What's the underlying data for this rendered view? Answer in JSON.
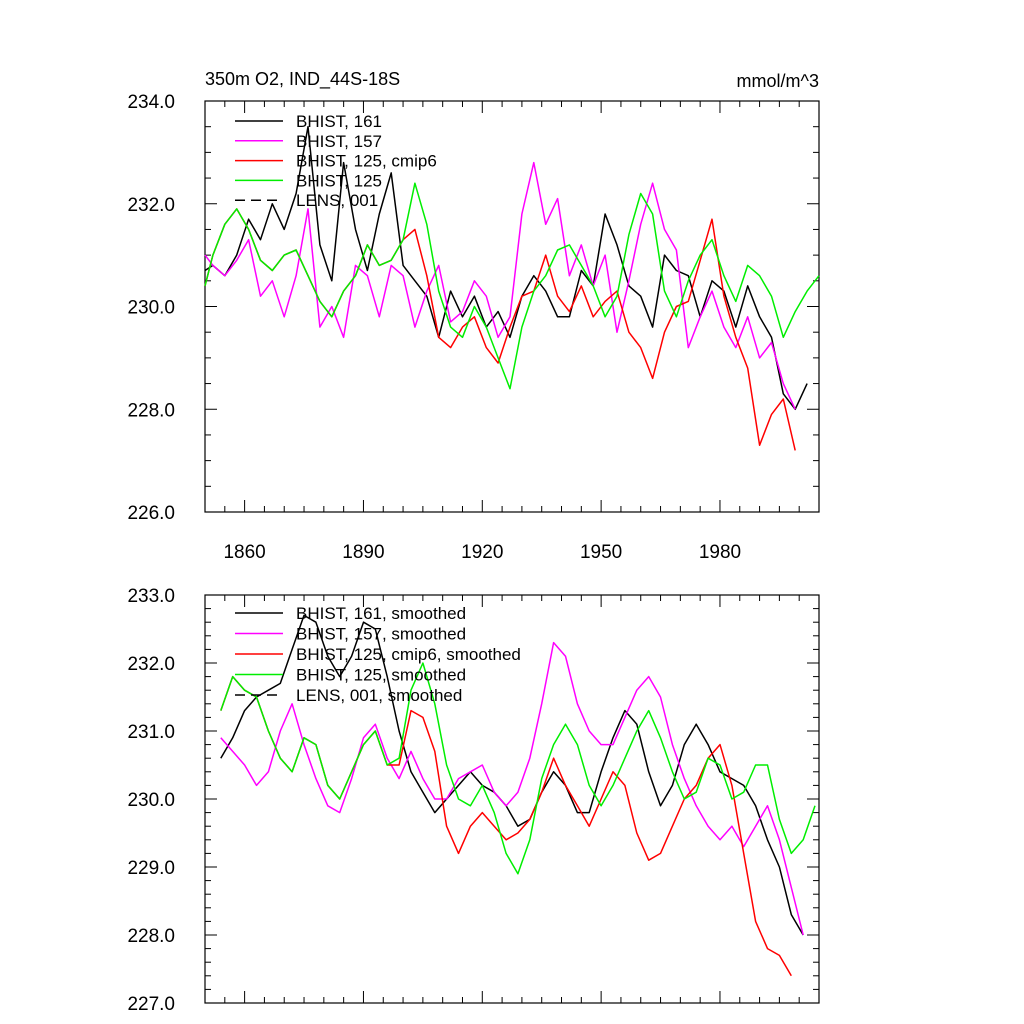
{
  "chart_data": [
    {
      "type": "line",
      "title_left": "350m O2, IND_44S-18S",
      "title_right": "mmol/m^3",
      "xlim": [
        1850,
        2005
      ],
      "ylim": [
        226,
        234
      ],
      "x_ticks": [
        1860,
        1890,
        1920,
        1950,
        1980
      ],
      "x_tick_labels": [
        "1860",
        "1890",
        "1920",
        "1950",
        "1980"
      ],
      "y_ticks": [
        226,
        228,
        230,
        232,
        234
      ],
      "y_tick_labels": [
        "226.0",
        "228.0",
        "230.0",
        "232.0",
        "234.0"
      ],
      "legend_position": "top-left",
      "series": [
        {
          "name": "BHIST, 161",
          "color": "#000000",
          "dash": "solid",
          "x": [
            1850,
            1852,
            1855,
            1858,
            1861,
            1864,
            1867,
            1870,
            1873,
            1876,
            1879,
            1882,
            1885,
            1888,
            1891,
            1894,
            1897,
            1900,
            1903,
            1906,
            1909,
            1912,
            1915,
            1918,
            1921,
            1924,
            1927,
            1930,
            1933,
            1936,
            1939,
            1942,
            1945,
            1948,
            1951,
            1954,
            1957,
            1960,
            1963,
            1966,
            1969,
            1972,
            1975,
            1978,
            1981,
            1984,
            1987,
            1990,
            1993,
            1996,
            1999,
            2002
          ],
          "values": [
            230.7,
            230.8,
            230.6,
            231.0,
            231.7,
            231.3,
            232.0,
            231.5,
            232.2,
            233.5,
            231.2,
            230.5,
            232.8,
            231.5,
            230.7,
            231.8,
            232.6,
            230.8,
            230.5,
            230.2,
            229.4,
            230.3,
            229.8,
            230.2,
            229.6,
            229.9,
            229.4,
            230.2,
            230.6,
            230.3,
            229.8,
            229.8,
            230.7,
            230.4,
            231.8,
            231.2,
            230.4,
            230.2,
            229.6,
            231.0,
            230.7,
            230.6,
            229.8,
            230.5,
            230.3,
            229.6,
            230.4,
            229.8,
            229.4,
            228.3,
            228.0,
            228.5
          ]
        },
        {
          "name": "BHIST, 157",
          "color": "#ff00ff",
          "dash": "solid",
          "x": [
            1850,
            1852,
            1855,
            1858,
            1861,
            1864,
            1867,
            1870,
            1873,
            1876,
            1879,
            1882,
            1885,
            1888,
            1891,
            1894,
            1897,
            1900,
            1903,
            1906,
            1909,
            1912,
            1915,
            1918,
            1921,
            1924,
            1927,
            1930,
            1933,
            1936,
            1939,
            1942,
            1945,
            1948,
            1951,
            1954,
            1957,
            1960,
            1963,
            1966,
            1969,
            1972,
            1975,
            1978,
            1981,
            1984,
            1987,
            1990,
            1993,
            1996,
            1999
          ],
          "values": [
            231.0,
            230.8,
            230.6,
            230.9,
            231.3,
            230.2,
            230.5,
            229.8,
            230.6,
            231.9,
            229.6,
            230.0,
            229.4,
            230.8,
            230.6,
            229.8,
            230.8,
            230.6,
            229.6,
            230.3,
            230.8,
            229.7,
            229.9,
            230.5,
            230.2,
            229.4,
            229.8,
            231.8,
            232.8,
            231.6,
            232.1,
            230.6,
            231.2,
            230.4,
            231.0,
            229.5,
            230.5,
            231.6,
            232.4,
            231.5,
            231.1,
            229.2,
            229.8,
            230.3,
            229.6,
            229.2,
            229.8,
            229.0,
            229.3,
            228.5,
            228.0
          ]
        },
        {
          "name": "BHIST, 125, cmip6",
          "color": "#ff0000",
          "dash": "solid",
          "x": [
            1850,
            1852,
            1855,
            1858,
            1861,
            1864,
            1867,
            1870,
            1873,
            1876,
            1879,
            1882,
            1885,
            1888,
            1891,
            1894,
            1897,
            1900,
            1903,
            1906,
            1909,
            1912,
            1915,
            1918,
            1921,
            1924,
            1927,
            1930,
            1933,
            1936,
            1939,
            1942,
            1945,
            1948,
            1951,
            1954,
            1957,
            1960,
            1963,
            1966,
            1969,
            1972,
            1975,
            1978,
            1981,
            1984,
            1987,
            1990,
            1993,
            1996,
            1999
          ],
          "values": [
            230.4,
            231.0,
            231.6,
            231.9,
            231.5,
            230.9,
            230.7,
            231.0,
            231.1,
            230.6,
            230.1,
            229.8,
            230.3,
            230.6,
            231.2,
            230.8,
            230.9,
            231.3,
            231.5,
            230.6,
            229.4,
            229.2,
            229.6,
            229.8,
            229.2,
            228.9,
            229.6,
            230.2,
            230.3,
            231.0,
            230.2,
            229.9,
            230.4,
            229.8,
            230.1,
            230.3,
            229.5,
            229.2,
            228.6,
            229.5,
            230.0,
            230.1,
            230.9,
            231.7,
            230.2,
            229.4,
            228.8,
            227.3,
            227.9,
            228.2,
            227.2
          ]
        },
        {
          "name": "BHIST, 125",
          "color": "#00ee00",
          "dash": "solid",
          "x": [
            1850,
            1852,
            1855,
            1858,
            1861,
            1864,
            1867,
            1870,
            1873,
            1876,
            1879,
            1882,
            1885,
            1888,
            1891,
            1894,
            1897,
            1900,
            1903,
            1906,
            1909,
            1912,
            1915,
            1918,
            1921,
            1924,
            1927,
            1930,
            1933,
            1936,
            1939,
            1942,
            1945,
            1948,
            1951,
            1954,
            1957,
            1960,
            1963,
            1966,
            1969,
            1972,
            1975,
            1978,
            1981,
            1984,
            1987,
            1990,
            1993,
            1996,
            1999,
            2002,
            2005
          ],
          "values": [
            230.4,
            231.0,
            231.6,
            231.9,
            231.5,
            230.9,
            230.7,
            231.0,
            231.1,
            230.6,
            230.1,
            229.8,
            230.3,
            230.6,
            231.2,
            230.8,
            230.9,
            231.3,
            232.4,
            231.6,
            230.3,
            229.6,
            229.4,
            230.0,
            229.6,
            229.0,
            228.4,
            229.6,
            230.3,
            230.6,
            231.1,
            231.2,
            230.8,
            230.4,
            229.8,
            230.2,
            231.4,
            232.2,
            231.8,
            230.3,
            229.8,
            230.5,
            231.0,
            231.3,
            230.6,
            230.1,
            230.8,
            230.6,
            230.2,
            229.4,
            229.9,
            230.3,
            230.6
          ]
        },
        {
          "name": "LENS, 001",
          "color": "#000000",
          "dash": "dashed",
          "x": [],
          "values": []
        }
      ]
    },
    {
      "type": "line",
      "xlim": [
        1850,
        2005
      ],
      "ylim": [
        227,
        233
      ],
      "x_ticks": [
        1860,
        1890,
        1920,
        1950,
        1980
      ],
      "y_ticks": [
        227,
        228,
        229,
        230,
        231,
        232,
        233
      ],
      "y_tick_labels": [
        "227.0",
        "228.0",
        "229.0",
        "230.0",
        "231.0",
        "232.0",
        "233.0"
      ],
      "legend_position": "top-left",
      "series": [
        {
          "name": "BHIST, 161, smoothed",
          "color": "#000000",
          "dash": "solid",
          "x": [
            1854,
            1857,
            1860,
            1863,
            1866,
            1869,
            1872,
            1875,
            1878,
            1881,
            1884,
            1887,
            1890,
            1893,
            1896,
            1899,
            1902,
            1905,
            1908,
            1911,
            1914,
            1917,
            1920,
            1923,
            1926,
            1929,
            1932,
            1935,
            1938,
            1941,
            1944,
            1947,
            1950,
            1953,
            1956,
            1959,
            1962,
            1965,
            1968,
            1971,
            1974,
            1977,
            1980,
            1983,
            1986,
            1989,
            1992,
            1995,
            1998,
            2001
          ],
          "values": [
            230.6,
            230.9,
            231.3,
            231.5,
            231.6,
            231.7,
            232.2,
            232.7,
            232.6,
            232.1,
            231.8,
            232.1,
            232.6,
            232.5,
            231.8,
            231.0,
            230.4,
            230.1,
            229.8,
            230.0,
            230.2,
            230.4,
            230.2,
            230.1,
            229.9,
            229.6,
            229.7,
            230.1,
            230.4,
            230.2,
            229.8,
            229.8,
            230.4,
            230.9,
            231.3,
            231.1,
            230.4,
            229.9,
            230.2,
            230.8,
            231.1,
            230.8,
            230.4,
            230.3,
            230.2,
            229.9,
            229.4,
            229.0,
            228.3,
            228.0
          ]
        },
        {
          "name": "BHIST, 157, smoothed",
          "color": "#ff00ff",
          "dash": "solid",
          "x": [
            1854,
            1857,
            1860,
            1863,
            1866,
            1869,
            1872,
            1875,
            1878,
            1881,
            1884,
            1887,
            1890,
            1893,
            1896,
            1899,
            1902,
            1905,
            1908,
            1911,
            1914,
            1917,
            1920,
            1923,
            1926,
            1929,
            1932,
            1935,
            1938,
            1941,
            1944,
            1947,
            1950,
            1953,
            1956,
            1959,
            1962,
            1965,
            1968,
            1971,
            1974,
            1977,
            1980,
            1983,
            1986,
            1989,
            1992,
            1995,
            1998,
            2001
          ],
          "values": [
            230.9,
            230.7,
            230.5,
            230.2,
            230.4,
            231.0,
            231.4,
            230.8,
            230.3,
            229.9,
            229.8,
            230.3,
            230.9,
            231.1,
            230.6,
            230.3,
            230.7,
            230.3,
            230.0,
            230.0,
            230.3,
            230.4,
            230.5,
            230.1,
            229.9,
            230.1,
            230.6,
            231.4,
            232.3,
            232.1,
            231.4,
            231.0,
            230.8,
            230.8,
            231.2,
            231.6,
            231.8,
            231.5,
            230.8,
            230.3,
            229.9,
            229.6,
            229.4,
            229.6,
            229.3,
            229.6,
            229.9,
            229.4,
            228.7,
            228.0
          ]
        },
        {
          "name": "BHIST, 125, cmip6, smoothed",
          "color": "#ff0000",
          "dash": "solid",
          "x": [
            1854,
            1857,
            1860,
            1863,
            1866,
            1869,
            1872,
            1875,
            1878,
            1881,
            1884,
            1887,
            1890,
            1893,
            1896,
            1899,
            1902,
            1905,
            1908,
            1911,
            1914,
            1917,
            1920,
            1923,
            1926,
            1929,
            1932,
            1935,
            1938,
            1941,
            1944,
            1947,
            1950,
            1953,
            1956,
            1959,
            1962,
            1965,
            1968,
            1971,
            1974,
            1977,
            1980,
            1983,
            1986,
            1989,
            1992,
            1995,
            1998
          ],
          "values": [
            231.3,
            231.8,
            231.6,
            231.5,
            231.0,
            230.6,
            230.4,
            230.9,
            230.8,
            230.2,
            230.0,
            230.4,
            230.8,
            231.0,
            230.5,
            230.5,
            231.3,
            231.2,
            230.7,
            229.6,
            229.2,
            229.6,
            229.8,
            229.6,
            229.4,
            229.5,
            229.7,
            230.1,
            230.6,
            230.2,
            229.9,
            229.6,
            230.0,
            230.4,
            230.2,
            229.5,
            229.1,
            229.2,
            229.6,
            230.0,
            230.2,
            230.6,
            230.8,
            230.2,
            229.2,
            228.2,
            227.8,
            227.7,
            227.4
          ]
        },
        {
          "name": "BHIST, 125, smoothed",
          "color": "#00ee00",
          "dash": "solid",
          "x": [
            1854,
            1857,
            1860,
            1863,
            1866,
            1869,
            1872,
            1875,
            1878,
            1881,
            1884,
            1887,
            1890,
            1893,
            1896,
            1899,
            1902,
            1905,
            1908,
            1911,
            1914,
            1917,
            1920,
            1923,
            1926,
            1929,
            1932,
            1935,
            1938,
            1941,
            1944,
            1947,
            1950,
            1953,
            1956,
            1959,
            1962,
            1965,
            1968,
            1971,
            1974,
            1977,
            1980,
            1983,
            1986,
            1989,
            1992,
            1995,
            1998,
            2001,
            2004
          ],
          "values": [
            231.3,
            231.8,
            231.6,
            231.5,
            231.0,
            230.6,
            230.4,
            230.9,
            230.8,
            230.2,
            230.0,
            230.4,
            230.8,
            231.0,
            230.5,
            230.6,
            231.6,
            232.0,
            231.4,
            230.5,
            230.0,
            229.9,
            230.2,
            229.8,
            229.2,
            228.9,
            229.4,
            230.3,
            230.8,
            231.1,
            230.8,
            230.2,
            229.9,
            230.2,
            230.6,
            231.0,
            231.3,
            230.9,
            230.4,
            230.0,
            230.1,
            230.6,
            230.5,
            230.0,
            230.1,
            230.5,
            230.5,
            229.7,
            229.2,
            229.4,
            229.9
          ]
        },
        {
          "name": "LENS, 001, smoothed",
          "color": "#000000",
          "dash": "dashed",
          "x": [],
          "values": []
        }
      ]
    }
  ]
}
